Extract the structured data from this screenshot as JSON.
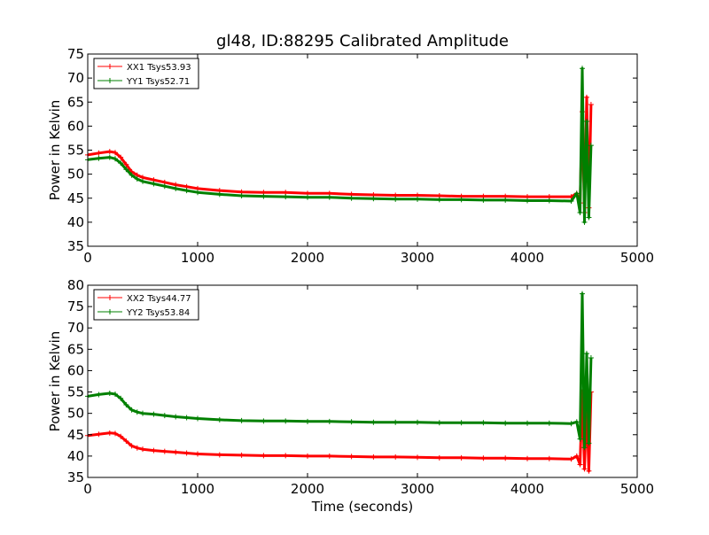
{
  "figure": {
    "title": "gl48, ID:88295 Calibrated Amplitude",
    "xlabel": "Time (seconds)"
  },
  "chart_data": [
    {
      "type": "line",
      "title": "gl48, ID:88295 Calibrated Amplitude",
      "xlabel": "",
      "ylabel": "Power in Kelvin",
      "xlim": [
        0,
        5000
      ],
      "ylim": [
        35,
        75
      ],
      "xticks": [
        0,
        1000,
        2000,
        3000,
        4000,
        5000
      ],
      "yticks": [
        35,
        40,
        45,
        50,
        55,
        60,
        65,
        70,
        75
      ],
      "grid": false,
      "legend_position": "top-left",
      "marker": "+",
      "x": [
        0,
        100,
        200,
        250,
        300,
        350,
        400,
        450,
        500,
        600,
        700,
        800,
        900,
        1000,
        1200,
        1400,
        1600,
        1800,
        2000,
        2200,
        2400,
        2600,
        2800,
        3000,
        3200,
        3400,
        3600,
        3800,
        4000,
        4200,
        4400,
        4450,
        4480,
        4500,
        4520,
        4540,
        4560,
        4580
      ],
      "series": [
        {
          "name": "XX1 Tsys53.93",
          "color": "#ff0000",
          "values": [
            54.0,
            54.4,
            54.7,
            54.5,
            53.5,
            52.0,
            50.5,
            49.8,
            49.3,
            48.8,
            48.3,
            47.8,
            47.4,
            47.0,
            46.6,
            46.3,
            46.2,
            46.2,
            46.0,
            46.0,
            45.8,
            45.7,
            45.6,
            45.6,
            45.5,
            45.4,
            45.4,
            45.4,
            45.3,
            45.3,
            45.3,
            46.0,
            44.0,
            63.0,
            42.0,
            66.0,
            43.0,
            64.5
          ]
        },
        {
          "name": "YY1 Tsys52.71",
          "color": "#008000",
          "values": [
            53.0,
            53.3,
            53.5,
            53.2,
            52.3,
            51.0,
            49.8,
            49.0,
            48.5,
            48.0,
            47.5,
            47.0,
            46.6,
            46.2,
            45.8,
            45.5,
            45.4,
            45.3,
            45.2,
            45.2,
            45.0,
            44.9,
            44.8,
            44.8,
            44.7,
            44.7,
            44.6,
            44.6,
            44.5,
            44.5,
            44.4,
            46.0,
            42.0,
            72.0,
            40.0,
            61.0,
            41.0,
            56.0
          ]
        }
      ]
    },
    {
      "type": "line",
      "title": "",
      "xlabel": "Time (seconds)",
      "ylabel": "Power in Kelvin",
      "xlim": [
        0,
        5000
      ],
      "ylim": [
        35,
        80
      ],
      "xticks": [
        0,
        1000,
        2000,
        3000,
        4000,
        5000
      ],
      "yticks": [
        35,
        40,
        45,
        50,
        55,
        60,
        65,
        70,
        75,
        80
      ],
      "grid": false,
      "legend_position": "top-left",
      "marker": "+",
      "x": [
        0,
        100,
        200,
        250,
        300,
        350,
        400,
        450,
        500,
        600,
        700,
        800,
        900,
        1000,
        1200,
        1400,
        1600,
        1800,
        2000,
        2200,
        2400,
        2600,
        2800,
        3000,
        3200,
        3400,
        3600,
        3800,
        4000,
        4200,
        4400,
        4450,
        4480,
        4500,
        4520,
        4540,
        4560,
        4580
      ],
      "series": [
        {
          "name": "XX2 Tsys44.77",
          "color": "#ff0000",
          "values": [
            44.8,
            45.1,
            45.4,
            45.3,
            44.6,
            43.5,
            42.4,
            41.9,
            41.6,
            41.3,
            41.1,
            40.9,
            40.7,
            40.5,
            40.3,
            40.2,
            40.1,
            40.1,
            40.0,
            40.0,
            39.9,
            39.8,
            39.8,
            39.7,
            39.6,
            39.6,
            39.5,
            39.5,
            39.4,
            39.4,
            39.3,
            40.0,
            38.0,
            55.0,
            37.0,
            52.0,
            36.5,
            55.0
          ]
        },
        {
          "name": "YY2 Tsys53.84",
          "color": "#008000",
          "values": [
            54.0,
            54.4,
            54.7,
            54.5,
            53.5,
            52.0,
            50.8,
            50.3,
            50.0,
            49.8,
            49.5,
            49.2,
            49.0,
            48.8,
            48.5,
            48.3,
            48.2,
            48.2,
            48.1,
            48.1,
            48.0,
            47.9,
            47.9,
            47.9,
            47.8,
            47.8,
            47.8,
            47.7,
            47.7,
            47.7,
            47.6,
            48.0,
            44.0,
            78.0,
            42.0,
            64.0,
            43.0,
            63.0
          ]
        }
      ]
    }
  ]
}
